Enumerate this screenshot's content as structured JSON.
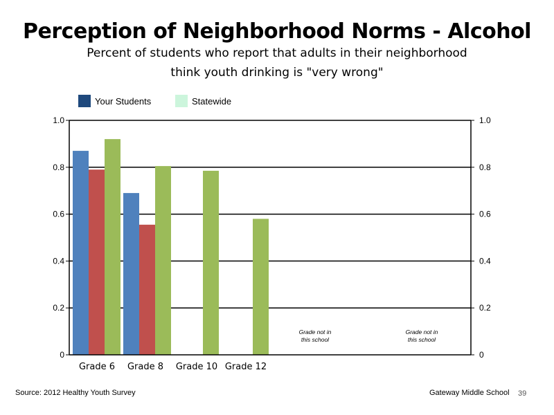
{
  "title": "Perception of Neighborhood Norms - Alcohol",
  "subtitle_line1": "Percent of students who report that adults in their neighborhood",
  "subtitle_line2": "think youth drinking is \"very wrong\"",
  "legend": [
    {
      "label": "Your Students",
      "color": "#1f497d"
    },
    {
      "label": "Statewide",
      "color": "#ccf5dc"
    }
  ],
  "footer": {
    "source": "Source: 2012 Healthy Youth Survey",
    "school": "Gateway Middle  School",
    "page": "39"
  },
  "chart_data": {
    "type": "bar",
    "categories": [
      "Grade 6",
      "Grade 8",
      "Grade 10",
      "Grade 12"
    ],
    "series": [
      {
        "color": "#4f81bd",
        "values": [
          0.87,
          0.69,
          null,
          null
        ]
      },
      {
        "color": "#c0504d",
        "values": [
          0.79,
          0.555,
          null,
          null
        ]
      },
      {
        "color": "#9bbb59",
        "values": [
          0.92,
          0.805,
          0.785,
          0.58
        ]
      }
    ],
    "ylim": [
      0,
      1.0
    ],
    "yticks_left": [
      "0",
      "0.2",
      "0.4",
      "0.6",
      "0.8",
      "1.0"
    ],
    "yticks_right": [
      "0",
      "0.2",
      "0.4",
      "0.6",
      "0.8",
      "1.0"
    ],
    "grid": true,
    "annotations": [
      "Grade not in this school",
      "Grade not in this school"
    ]
  }
}
